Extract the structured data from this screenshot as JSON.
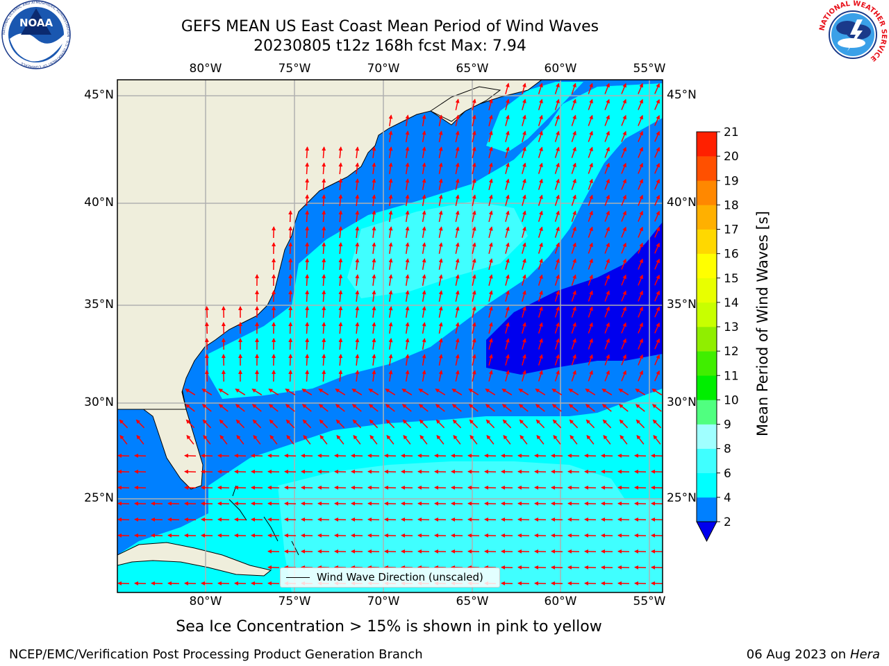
{
  "header": {
    "title_line1": "GEFS MEAN US East Coast Mean Period of Wind Waves",
    "title_line2": "20230805 t12z 168h fcst   Max: 7.94",
    "noaa_logo_text": "NOAA",
    "noaa_ring_text": "NATIONAL OCEANIC AND ATMOSPHERIC ADMINISTRATION · U.S. DEPARTMENT OF COMMERCE",
    "nws_ring_text": "NATIONAL WEATHER SERVICE"
  },
  "map": {
    "lon_labels": [
      "80°W",
      "75°W",
      "70°W",
      "65°W",
      "60°W",
      "55°W"
    ],
    "lat_labels": [
      "45°N",
      "40°N",
      "35°N",
      "30°N",
      "25°N"
    ],
    "legend_label": "Wind Wave Direction (unscaled)",
    "colors": {
      "land": "#efeedc",
      "period_2_4": "#0080ff",
      "period_4_6": "#00ffff",
      "period_6_8": "#40ffff",
      "period_below_2": "#0000ee",
      "arrow": "#ff0000",
      "grid": "#b0b0b0"
    }
  },
  "colorbar": {
    "title": "Mean Period of Wind Waves [s]",
    "ticks": [
      "2",
      "4",
      "6",
      "8",
      "9",
      "10",
      "11",
      "12",
      "13",
      "14",
      "15",
      "16",
      "17",
      "18",
      "19",
      "20",
      "21"
    ],
    "colors": [
      "#0080ff",
      "#00ffff",
      "#40ffff",
      "#a0ffff",
      "#50ff80",
      "#00ee00",
      "#40ee00",
      "#90ee00",
      "#c8ff00",
      "#e8ff00",
      "#ffff00",
      "#ffd800",
      "#ffb000",
      "#ff8800",
      "#ff5000",
      "#ff2000"
    ],
    "extend_color": "#0000ee"
  },
  "caption": "Sea Ice Concentration > 15% is shown in pink to yellow",
  "footer": {
    "left": "NCEP/EMC/Verification Post Processing Product Generation Branch",
    "date": "06 Aug 2023 on",
    "machine": "Hera"
  }
}
